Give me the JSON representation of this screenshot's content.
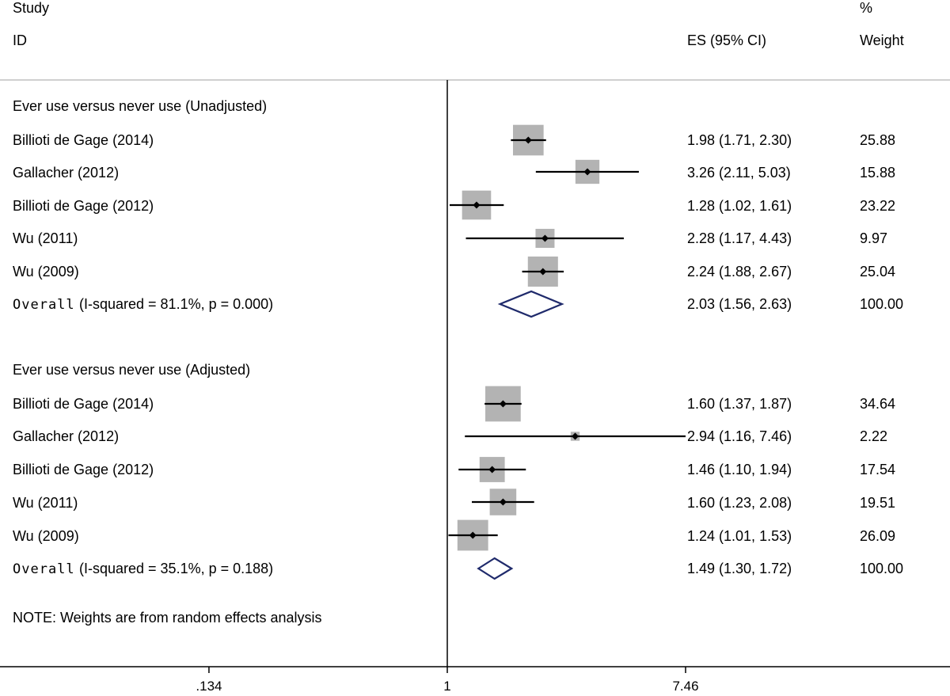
{
  "header": {
    "study": "Study",
    "id": "ID",
    "es": "ES (95% CI)",
    "pct": "%",
    "weight": "Weight"
  },
  "note": "NOTE: Weights are from random effects analysis",
  "chart_data": {
    "type": "forest",
    "scale": "log",
    "null_value": 1,
    "xlim": [
      0.134,
      7.46
    ],
    "xticks": [
      {
        "value": 0.134,
        "label": ".134"
      },
      {
        "value": 1,
        "label": "1"
      },
      {
        "value": 7.46,
        "label": "7.46"
      }
    ],
    "accent_colors": {
      "diamond": "#1f2a6b",
      "box": "#b3b3b3",
      "lines": "#000000"
    },
    "groups": [
      {
        "title": "Ever use versus never use (Unadjusted)",
        "studies": [
          {
            "study": "Billioti de Gage (2014)",
            "es": 1.98,
            "lo": 1.71,
            "hi": 2.3,
            "es_text": "1.98 (1.71, 2.30)",
            "weight": 25.88,
            "weight_text": "25.88"
          },
          {
            "study": "Gallacher (2012)",
            "es": 3.26,
            "lo": 2.11,
            "hi": 5.03,
            "es_text": "3.26 (2.11, 5.03)",
            "weight": 15.88,
            "weight_text": "15.88"
          },
          {
            "study": "Billioti de Gage (2012)",
            "es": 1.28,
            "lo": 1.02,
            "hi": 1.61,
            "es_text": "1.28 (1.02, 1.61)",
            "weight": 23.22,
            "weight_text": "23.22"
          },
          {
            "study": "Wu (2011)",
            "es": 2.28,
            "lo": 1.17,
            "hi": 4.43,
            "es_text": "2.28 (1.17, 4.43)",
            "weight": 9.97,
            "weight_text": "9.97"
          },
          {
            "study": "Wu (2009)",
            "es": 2.24,
            "lo": 1.88,
            "hi": 2.67,
            "es_text": "2.24 (1.88, 2.67)",
            "weight": 25.04,
            "weight_text": "25.04"
          }
        ],
        "overall": {
          "label": "Overall",
          "stats": "(I-squared = 81.1%, p = 0.000)",
          "es": 2.03,
          "lo": 1.56,
          "hi": 2.63,
          "es_text": "2.03 (1.56, 2.63)",
          "weight_text": "100.00"
        }
      },
      {
        "title": "Ever use versus never use (Adjusted)",
        "studies": [
          {
            "study": "Billioti de Gage (2014)",
            "es": 1.6,
            "lo": 1.37,
            "hi": 1.87,
            "es_text": "1.60 (1.37, 1.87)",
            "weight": 34.64,
            "weight_text": "34.64"
          },
          {
            "study": "Gallacher (2012)",
            "es": 2.94,
            "lo": 1.16,
            "hi": 7.46,
            "es_text": "2.94 (1.16, 7.46)",
            "weight": 2.22,
            "weight_text": "2.22"
          },
          {
            "study": "Billioti de Gage (2012)",
            "es": 1.46,
            "lo": 1.1,
            "hi": 1.94,
            "es_text": "1.46 (1.10, 1.94)",
            "weight": 17.54,
            "weight_text": "17.54"
          },
          {
            "study": "Wu (2011)",
            "es": 1.6,
            "lo": 1.23,
            "hi": 2.08,
            "es_text": "1.60 (1.23, 2.08)",
            "weight": 19.51,
            "weight_text": "19.51"
          },
          {
            "study": "Wu (2009)",
            "es": 1.24,
            "lo": 1.01,
            "hi": 1.53,
            "es_text": "1.24 (1.01, 1.53)",
            "weight": 26.09,
            "weight_text": "26.09"
          }
        ],
        "overall": {
          "label": "Overall",
          "stats": "(I-squared = 35.1%, p = 0.188)",
          "es": 1.49,
          "lo": 1.3,
          "hi": 1.72,
          "es_text": "1.49 (1.30, 1.72)",
          "weight_text": "100.00"
        }
      }
    ]
  }
}
